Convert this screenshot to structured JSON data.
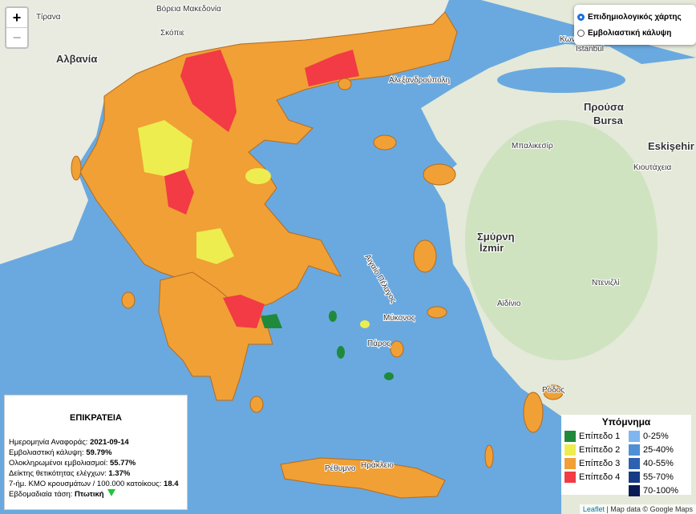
{
  "zoom": {
    "in": "+",
    "out": "−"
  },
  "layers": {
    "options": [
      {
        "label": "Επιδημιολογικός χάρτης",
        "selected": true
      },
      {
        "label": "Εμβολιαστική κάλυψη",
        "selected": false
      }
    ]
  },
  "info": {
    "title": "ΕΠΙΚΡΑΤΕΙΑ",
    "rows": [
      {
        "label": "Ημερομηνία Αναφοράς:",
        "value": "2021-09-14"
      },
      {
        "label": "Εμβολιαστική κάλυψη:",
        "value": "59.79%"
      },
      {
        "label": "Ολοκληρωμένοι εμβολιασμοί:",
        "value": "55.77%"
      },
      {
        "label": "Δείκτης θετικότητας ελέγχων:",
        "value": "1.37%"
      },
      {
        "label": "7-ήμ. ΚΜΟ κρουσμάτων / 100.000 κατοίκους:",
        "value": "18.4"
      },
      {
        "label": "Εβδομαδιαία τάση:",
        "value": "Πτωτική"
      }
    ]
  },
  "legend": {
    "title": "Υπόμνημα",
    "levels": [
      {
        "label": "Επίπεδο 1",
        "color": "#1f8a3b"
      },
      {
        "label": "Επίπεδο 2",
        "color": "#eded4f"
      },
      {
        "label": "Επίπεδο 3",
        "color": "#f0a035"
      },
      {
        "label": "Επίπεδο 4",
        "color": "#f23b45"
      }
    ],
    "coverage": [
      {
        "label": "0-25%",
        "color": "#7fb6f0"
      },
      {
        "label": "25-40%",
        "color": "#4f8fd6"
      },
      {
        "label": "40-55%",
        "color": "#2d62b0"
      },
      {
        "label": "55-70%",
        "color": "#173c86"
      },
      {
        "label": "70-100%",
        "color": "#0a1a55"
      }
    ]
  },
  "map_labels": [
    "Τίρανα",
    "Βόρεια Μακεδονία",
    "Σκόπιε",
    "Αλβανία",
    "Κωνσταντινούπολη",
    "Istanbul",
    "Προύσα",
    "Bursa",
    "Μπαλικεσίρ",
    "Eskişehir",
    "Κιουτάχεια",
    "Σμύρνη",
    "İzmir",
    "Αϊδίνιο",
    "Ντενιζλί",
    "Αλεξανδρούπολη",
    "Αιγαίο Πέλαγος",
    "Μύκονος",
    "Πάρος",
    "Ρόδος",
    "Ρέθυμνο",
    "Ηράκλειο"
  ],
  "attribution": {
    "link": "Leaflet",
    "text": "| Map data © Google Maps"
  }
}
